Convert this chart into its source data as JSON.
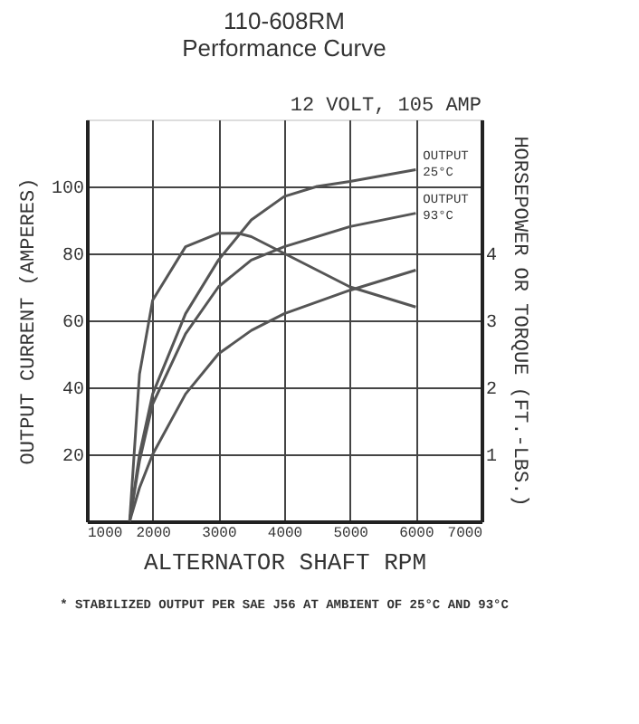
{
  "chart_data": {
    "type": "line",
    "title": [
      "110-608RM",
      "Performance Curve"
    ],
    "xlabel": "ALTERNATOR SHAFT RPM",
    "ylabel": "OUTPUT CURRENT (AMPERES)",
    "y2label": "HORSEPOWER OR TORQUE (FT.-LBS.)",
    "annotations": [
      "12 VOLT, 105 AMP",
      "* STABILIZED OUTPUT PER SAE J56 AT AMBIENT OF 25°C AND 93°C"
    ],
    "xlim": [
      1000,
      7000
    ],
    "xticks": [
      1000,
      2000,
      3000,
      4000,
      5000,
      6000,
      7000
    ],
    "ylim": [
      0,
      120
    ],
    "yticks": [
      20,
      40,
      60,
      80,
      100
    ],
    "y2lim": [
      0,
      6
    ],
    "y2ticks": [
      1,
      2,
      3,
      4
    ],
    "grid": true,
    "legend": false,
    "marker": "none",
    "line_style": "solid",
    "series": [
      {
        "name": "OUTPUT 25°C",
        "color": "#555555",
        "x": [
          1650,
          1800,
          2000,
          2500,
          3000,
          3500,
          4000,
          4500,
          5000,
          6000
        ],
        "values": [
          0,
          20,
          38,
          62,
          78,
          90,
          97,
          100,
          101.5,
          105
        ]
      },
      {
        "name": "OUTPUT 93°C",
        "color": "#555555",
        "x": [
          1650,
          1800,
          2000,
          2500,
          3000,
          3500,
          4000,
          5000,
          6000
        ],
        "values": [
          0,
          18,
          35,
          56,
          70,
          78,
          82,
          88,
          92
        ]
      },
      {
        "color": "#555555",
        "axis": "y2",
        "x": [
          1650,
          1800,
          2000,
          2500,
          3000,
          3300,
          3500,
          4000,
          5000,
          6000
        ],
        "values": [
          0,
          2.2,
          3.3,
          4.1,
          4.3,
          4.3,
          4.25,
          4.0,
          3.5,
          3.2
        ]
      },
      {
        "color": "#555555",
        "axis": "y2",
        "x": [
          1650,
          1800,
          2000,
          2500,
          3000,
          3500,
          4000,
          5000,
          6000
        ],
        "values": [
          0,
          0.5,
          1.0,
          1.9,
          2.5,
          2.85,
          3.1,
          3.45,
          3.75
        ]
      }
    ]
  }
}
